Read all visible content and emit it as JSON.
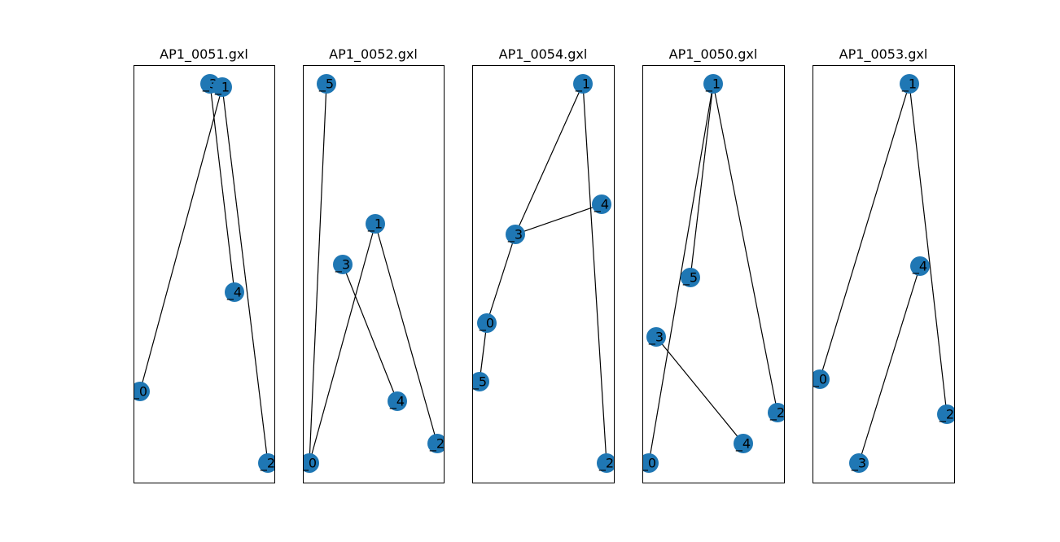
{
  "figure": {
    "node_color": "#1f77b4",
    "edge_color": "#000000",
    "panels": [
      {
        "title": "AP1_0051.gxl",
        "nodes": [
          {
            "label": "_3"
          },
          {
            "label": "_1"
          },
          {
            "label": "_4"
          },
          {
            "label": "_0"
          },
          {
            "label": "_2"
          }
        ],
        "edges": [
          [
            "_1",
            "_0"
          ],
          [
            "_1",
            "_2"
          ],
          [
            "_3",
            "_4"
          ]
        ]
      },
      {
        "title": "AP1_0052.gxl",
        "nodes": [
          {
            "label": "_5"
          },
          {
            "label": "_1"
          },
          {
            "label": "_3"
          },
          {
            "label": "_4"
          },
          {
            "label": "_2"
          },
          {
            "label": "_0"
          }
        ],
        "edges": [
          [
            "_5",
            "_0"
          ],
          [
            "_1",
            "_0"
          ],
          [
            "_1",
            "_2"
          ],
          [
            "_3",
            "_4"
          ]
        ]
      },
      {
        "title": "AP1_0054.gxl",
        "nodes": [
          {
            "label": "_1"
          },
          {
            "label": "_4"
          },
          {
            "label": "_3"
          },
          {
            "label": "_0"
          },
          {
            "label": "_5"
          },
          {
            "label": "_2"
          }
        ],
        "edges": [
          [
            "_1",
            "_3"
          ],
          [
            "_1",
            "_2"
          ],
          [
            "_3",
            "_4"
          ],
          [
            "_3",
            "_0"
          ],
          [
            "_0",
            "_5"
          ]
        ]
      },
      {
        "title": "AP1_0050.gxl",
        "nodes": [
          {
            "label": "_1"
          },
          {
            "label": "_5"
          },
          {
            "label": "_3"
          },
          {
            "label": "_2"
          },
          {
            "label": "_4"
          },
          {
            "label": "_0"
          }
        ],
        "edges": [
          [
            "_1",
            "_5"
          ],
          [
            "_1",
            "_0"
          ],
          [
            "_1",
            "_2"
          ],
          [
            "_3",
            "_4"
          ]
        ]
      },
      {
        "title": "AP1_0053.gxl",
        "nodes": [
          {
            "label": "_1"
          },
          {
            "label": "_4"
          },
          {
            "label": "_0"
          },
          {
            "label": "_2"
          },
          {
            "label": "_3"
          }
        ],
        "edges": [
          [
            "_1",
            "_0"
          ],
          [
            "_1",
            "_2"
          ],
          [
            "_4",
            "_3"
          ]
        ]
      }
    ]
  }
}
